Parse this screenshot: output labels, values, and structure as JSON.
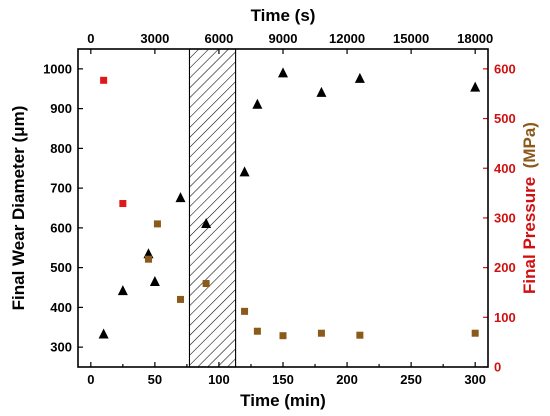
{
  "chart_data": {
    "type": "scatter",
    "xlabel": "Time (min)",
    "x2label": "Time (s)",
    "ylabel": "Final Wear Diameter (μm)",
    "y2label_part1": "Final Pressure",
    "y2label_part2": "(MPa)",
    "xlim": [
      -10,
      310
    ],
    "ylim": [
      250,
      1050
    ],
    "y2lim": [
      0,
      640
    ],
    "x_ticks": [
      0,
      50,
      100,
      150,
      200,
      250,
      300
    ],
    "x2_ticks": [
      0,
      3000,
      6000,
      9000,
      12000,
      15000,
      18000
    ],
    "y_ticks": [
      300,
      400,
      500,
      600,
      700,
      800,
      900,
      1000
    ],
    "y2_ticks": [
      0,
      100,
      200,
      300,
      400,
      500,
      600
    ],
    "shaded_region": {
      "x_from": 77,
      "x_to": 113
    },
    "series": [
      {
        "marker": "triangle",
        "color": "#000000",
        "axis": "left",
        "x": [
          10,
          25,
          45,
          50,
          70,
          90,
          120,
          130,
          150,
          180,
          210,
          300
        ],
        "y": [
          333,
          442,
          535,
          465,
          676,
          611,
          741,
          911,
          990,
          941,
          976,
          954
        ]
      },
      {
        "marker": "square",
        "color": "#e01818",
        "axis": "right",
        "x": [
          10,
          25
        ],
        "y": [
          577,
          329
        ]
      },
      {
        "marker": "square",
        "color": "#8b5a1a",
        "axis": "right",
        "x": [
          45,
          52,
          70,
          90,
          120,
          130,
          150,
          180,
          210,
          300
        ],
        "y": [
          217,
          288,
          136,
          168,
          112,
          72,
          63,
          68,
          64,
          68
        ]
      }
    ]
  }
}
